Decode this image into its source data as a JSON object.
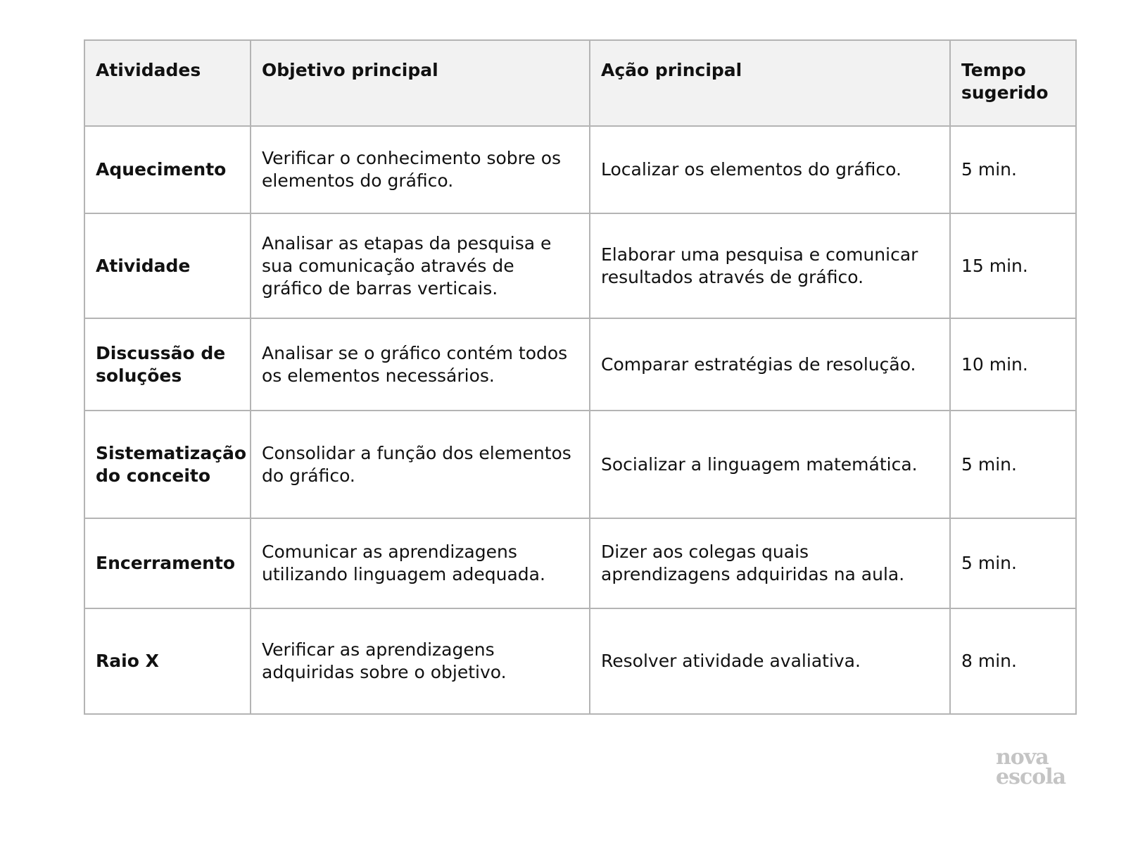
{
  "table": {
    "headers": [
      "Atividades",
      "Objetivo principal",
      "Ação principal",
      "Tempo sugerido"
    ],
    "rows": [
      [
        "Aquecimento",
        "Verificar o conhecimento sobre os elementos do gráfico.",
        "Localizar os elementos do gráfico.",
        "5 min."
      ],
      [
        "Atividade",
        "Analisar as etapas da pesquisa e sua comunicação através de gráfico de barras verticais.",
        "Elaborar uma pesquisa e comunicar resultados através de gráfico.",
        "15 min."
      ],
      [
        "Discussão de soluções",
        "Analisar se o gráfico contém todos os elementos necessários.",
        "Comparar estratégias de resolução.",
        "10 min."
      ],
      [
        "Sistematização do conceito",
        "Consolidar a função dos elementos do gráfico.",
        "Socializar a linguagem matemática.",
        "5 min."
      ],
      [
        "Encerramento",
        "Comunicar as aprendizagens utilizando linguagem adequada.",
        "Dizer aos colegas quais aprendizagens adquiridas na aula.",
        "5 min."
      ],
      [
        "Raio X",
        "Verificar as aprendizagens adquiridas sobre o objetivo.",
        "Resolver atividade avaliativa.",
        "8 min."
      ]
    ]
  },
  "logo": {
    "line1": "nova",
    "line2": "escola"
  }
}
